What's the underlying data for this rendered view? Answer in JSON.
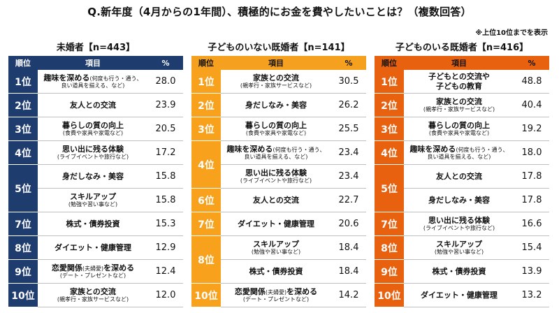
{
  "title": "Q.新年度（4月からの1年間）、積極的にお金を費やしたいことは？（複数回答）",
  "note": "※上位10位までを表示",
  "columns": {
    "rank": "順位",
    "item": "項目",
    "pct": "%"
  },
  "colors": {
    "single": "#1f3c6e",
    "no_children": "#f7a11c",
    "with_children": "#e8610f"
  },
  "chart_data": [
    {
      "type": "table",
      "title": "未婚者【n=443】",
      "rows": [
        {
          "rank": "1位",
          "main": "趣味を深める",
          "paren": "(何度も行う・通う、",
          "sub": "良い道具を揃える、など)",
          "value": 28.0
        },
        {
          "rank": "2位",
          "main": "友人との交流",
          "value": 23.9
        },
        {
          "rank": "3位",
          "main": "暮らしの質の向上",
          "sub": "(食費や家具や家電など)",
          "value": 20.5
        },
        {
          "rank": "4位",
          "main": "思い出に残る体験",
          "sub": "(ライブイベントや旅行など)",
          "value": 17.2
        },
        {
          "rank": "5位",
          "main": "身だしなみ・美容",
          "value": 15.8
        },
        {
          "rank": "5位",
          "main": "スキルアップ",
          "sub": "(勉強や習い事など)",
          "value": 15.8
        },
        {
          "rank": "7位",
          "main": "株式・債券投資",
          "value": 15.3
        },
        {
          "rank": "8位",
          "main": "ダイエット・健康管理",
          "value": 12.9
        },
        {
          "rank": "9位",
          "main": "恋愛関係",
          "paren": "(夫婦愛)",
          "main2": "を深める",
          "sub": "(デート・プレゼントなど)",
          "value": 12.4
        },
        {
          "rank": "10位",
          "main": "家族との交流",
          "sub": "(親孝行・家族サービスなど)",
          "value": 12.0
        }
      ]
    },
    {
      "type": "table",
      "title": "子どものいない既婚者【n=141】",
      "rows": [
        {
          "rank": "1位",
          "main": "家族との交流",
          "sub": "(親孝行・家族サービスなど)",
          "value": 30.5
        },
        {
          "rank": "2位",
          "main": "身だしなみ・美容",
          "value": 26.2
        },
        {
          "rank": "3位",
          "main": "暮らしの質の向上",
          "sub": "(食費や家具や家電など)",
          "value": 25.5
        },
        {
          "rank": "4位",
          "main": "趣味を深める",
          "paren": "(何度も行う・通う、",
          "sub": "良い道具を揃える、など)",
          "value": 23.4
        },
        {
          "rank": "4位",
          "main": "思い出に残る体験",
          "sub": "(ライブイベントや旅行など)",
          "value": 23.4
        },
        {
          "rank": "6位",
          "main": "友人との交流",
          "value": 22.7
        },
        {
          "rank": "7位",
          "main": "ダイエット・健康管理",
          "value": 20.6
        },
        {
          "rank": "8位",
          "main": "スキルアップ",
          "sub": "(勉強や習い事など)",
          "value": 18.4
        },
        {
          "rank": "8位",
          "main": "株式・債券投資",
          "value": 18.4
        },
        {
          "rank": "10位",
          "main": "恋愛関係",
          "paren": "(夫婦愛)",
          "main2": "を深める",
          "sub": "(デート・プレゼントなど)",
          "value": 14.2
        }
      ]
    },
    {
      "type": "table",
      "title": "子どものいる既婚者【n=416】",
      "rows": [
        {
          "rank": "1位",
          "main": "子どもとの交流や",
          "main_line2": "子どもの教育",
          "value": 48.8
        },
        {
          "rank": "2位",
          "main": "家族との交流",
          "sub": "(親孝行・家族サービスなど)",
          "value": 40.4
        },
        {
          "rank": "3位",
          "main": "暮らしの質の向上",
          "sub": "(食費や家具や家電など)",
          "value": 19.2
        },
        {
          "rank": "4位",
          "main": "趣味を深める",
          "paren": "(何度も行う・通う、",
          "sub": "良い道具を揃える、など)",
          "value": 18.0
        },
        {
          "rank": "5位",
          "main": "友人との交流",
          "value": 17.8
        },
        {
          "rank": "5位",
          "main": "身だしなみ・美容",
          "value": 17.8
        },
        {
          "rank": "7位",
          "main": "思い出に残る体験",
          "sub": "(ライブイベントや旅行など)",
          "value": 16.6
        },
        {
          "rank": "8位",
          "main": "スキルアップ",
          "sub": "(勉強や習い事など)",
          "value": 15.4
        },
        {
          "rank": "9位",
          "main": "株式・債券投資",
          "value": 13.9
        },
        {
          "rank": "10位",
          "main": "ダイエット・健康管理",
          "value": 13.2
        }
      ]
    }
  ]
}
